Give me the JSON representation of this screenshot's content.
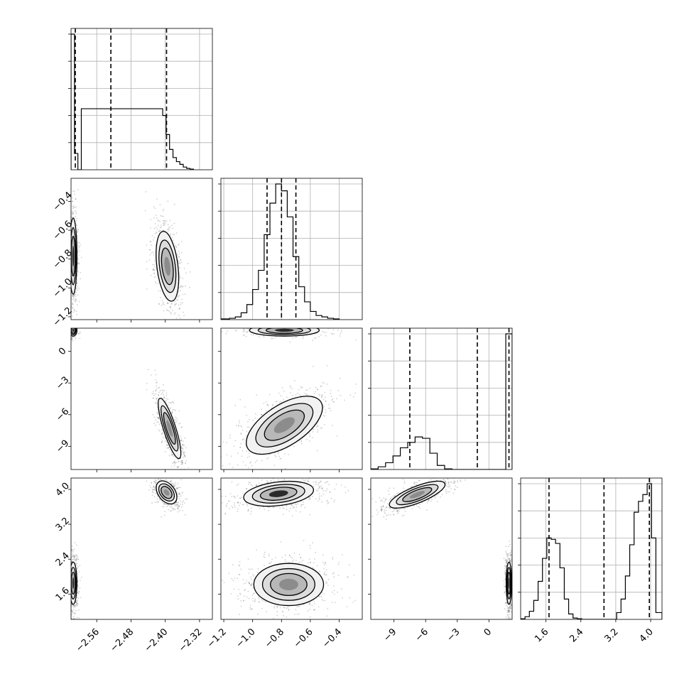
{
  "chart_data": {
    "type": "corner",
    "parameters": [
      {
        "ticks": [
          -2.56,
          -2.48,
          -2.4,
          -2.32
        ],
        "tick_labels": [
          "−2.56",
          "−2.48",
          "−2.40",
          "−2.32"
        ],
        "range": [
          -2.62,
          -2.29
        ],
        "quantiles": [
          -2.61,
          -2.527,
          -2.397
        ],
        "hist": {
          "edges": [
            -2.62,
            -2.612,
            -2.604,
            -2.596,
            -2.406,
            -2.398,
            -2.39,
            -2.382,
            -2.374,
            -2.366,
            -2.358,
            -2.35,
            -2.342,
            -2.334
          ],
          "counts": [
            1.0,
            0.12,
            0,
            0.45,
            0.4,
            0.26,
            0.15,
            0.09,
            0.06,
            0.04,
            0.02,
            0.01,
            0.005
          ]
        }
      },
      {
        "ticks": [
          -1.2,
          -1.0,
          -0.8,
          -0.6,
          -0.4
        ],
        "tick_labels": [
          "−1.2",
          "−1.0",
          "−0.8",
          "−0.6",
          "−0.4"
        ],
        "range": [
          -1.22,
          -0.24
        ],
        "quantiles": [
          -0.9,
          -0.8,
          -0.7
        ],
        "hist": {
          "edges": [
            -1.22,
            -1.16,
            -1.12,
            -1.08,
            -1.04,
            -1.0,
            -0.96,
            -0.92,
            -0.88,
            -0.84,
            -0.8,
            -0.76,
            -0.72,
            -0.68,
            -0.64,
            -0.6,
            -0.56,
            -0.52,
            -0.48,
            -0.44,
            -0.4
          ],
          "counts": [
            0.005,
            0.01,
            0.02,
            0.05,
            0.11,
            0.22,
            0.36,
            0.62,
            0.85,
            0.99,
            0.94,
            0.75,
            0.46,
            0.24,
            0.13,
            0.06,
            0.03,
            0.02,
            0.01,
            0.005
          ]
        }
      },
      {
        "ticks": [
          -9,
          -6,
          -3,
          0
        ],
        "tick_labels": [
          "−9",
          "−6",
          "−3",
          "0"
        ],
        "range": [
          -11.2,
          2.2
        ],
        "quantiles": [
          -7.5,
          -1.1,
          1.9
        ],
        "hist": {
          "edges": [
            -11.2,
            -10.5,
            -9.8,
            -9.1,
            -8.4,
            -7.7,
            -7.0,
            -6.3,
            -5.6,
            -4.9,
            -4.2,
            -3.5,
            1.6,
            2.2
          ],
          "counts": [
            0.005,
            0.02,
            0.05,
            0.1,
            0.16,
            0.2,
            0.24,
            0.23,
            0.12,
            0.03,
            0.005,
            0,
            1.0
          ]
        }
      },
      {
        "ticks": [
          1.6,
          2.4,
          3.2,
          4.0
        ],
        "tick_labels": [
          "1.6",
          "2.4",
          "3.2",
          "4.0"
        ],
        "range": [
          1.02,
          4.26
        ],
        "quantiles": [
          1.67,
          2.93,
          3.97
        ],
        "hist": {
          "edges": [
            1.02,
            1.12,
            1.22,
            1.32,
            1.42,
            1.52,
            1.62,
            1.72,
            1.82,
            1.92,
            2.02,
            2.12,
            2.22,
            2.32,
            2.42,
            3.22,
            3.32,
            3.42,
            3.52,
            3.62,
            3.72,
            3.82,
            3.92,
            4.02,
            4.12,
            4.26
          ],
          "counts": [
            0.005,
            0.02,
            0.06,
            0.14,
            0.28,
            0.45,
            0.6,
            0.59,
            0.56,
            0.38,
            0.15,
            0.04,
            0.01,
            0.005,
            0,
            0.05,
            0.15,
            0.32,
            0.55,
            0.79,
            0.87,
            0.92,
            1.0,
            0.6,
            0.05
          ]
        }
      }
    ],
    "pairs": [
      {
        "row": 1,
        "col": 0,
        "blobs": [
          {
            "mx": -2.615,
            "my": -0.78,
            "sx": 0.004,
            "sy": 0.12,
            "rho": 0,
            "w": 1.0,
            "peak": 1.0
          },
          {
            "mx": -2.395,
            "my": -0.85,
            "sx": 0.012,
            "sy": 0.11,
            "rho": -0.35,
            "w": 1.0,
            "peak": 0.6
          }
        ]
      },
      {
        "row": 2,
        "col": 0,
        "blobs": [
          {
            "mx": -2.615,
            "my": 2.0,
            "sx": 0.004,
            "sy": 0.25,
            "rho": 0,
            "w": 0.3,
            "peak": 0.9
          },
          {
            "mx": -2.39,
            "my": -7.3,
            "sx": 0.012,
            "sy": 1.3,
            "rho": -0.82,
            "w": 1.0,
            "peak": 0.7
          }
        ]
      },
      {
        "row": 3,
        "col": 0,
        "blobs": [
          {
            "mx": -2.615,
            "my": 1.85,
            "sx": 0.004,
            "sy": 0.22,
            "rho": 0,
            "w": 1.0,
            "peak": 1.0
          },
          {
            "mx": -2.397,
            "my": 3.93,
            "sx": 0.011,
            "sy": 0.12,
            "rho": -0.4,
            "w": 0.8,
            "peak": 0.65
          }
        ]
      },
      {
        "row": 2,
        "col": 1,
        "blobs": [
          {
            "mx": -0.78,
            "my": 2.0,
            "sx": 0.11,
            "sy": 0.25,
            "rho": 0,
            "w": 0.5,
            "peak": 0.9
          },
          {
            "mx": -0.78,
            "my": -7.0,
            "sx": 0.12,
            "sy": 1.25,
            "rho": 0.6,
            "w": 1.0,
            "peak": 0.5
          }
        ]
      },
      {
        "row": 3,
        "col": 1,
        "blobs": [
          {
            "mx": -0.82,
            "my": 3.9,
            "sx": 0.11,
            "sy": 0.13,
            "rho": 0.3,
            "w": 1.0,
            "peak": 1.0
          },
          {
            "mx": -0.75,
            "my": 1.82,
            "sx": 0.11,
            "sy": 0.22,
            "rho": 0,
            "w": 1.0,
            "peak": 0.75
          }
        ]
      },
      {
        "row": 3,
        "col": 2,
        "blobs": [
          {
            "mx": -6.8,
            "my": 3.88,
            "sx": 1.2,
            "sy": 0.14,
            "rho": 0.75,
            "w": 1.0,
            "peak": 0.55
          },
          {
            "mx": 1.9,
            "my": 1.85,
            "sx": 0.12,
            "sy": 0.22,
            "rho": 0,
            "w": 1.0,
            "peak": 1.0
          }
        ]
      }
    ]
  }
}
